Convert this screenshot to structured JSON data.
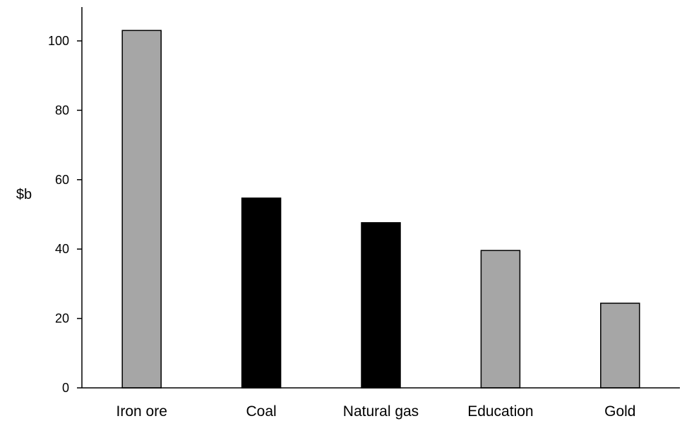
{
  "chart_data": {
    "type": "bar",
    "title": "",
    "xlabel": "",
    "ylabel": "$b",
    "categories": [
      "Iron ore",
      "Coal",
      "Natural gas",
      "Education",
      "Gold"
    ],
    "values": [
      103,
      54.7,
      47.6,
      39.6,
      24.4
    ],
    "bar_colors": [
      "#a6a6a6",
      "#000000",
      "#000000",
      "#a6a6a6",
      "#a6a6a6"
    ],
    "bar_edge_color": "#000000",
    "ylim": [
      0,
      110
    ],
    "yticks": [
      0,
      20,
      40,
      60,
      80,
      100
    ],
    "ytick_labels": [
      "0",
      "20",
      "40",
      "60",
      "80",
      "100"
    ],
    "grid": false,
    "legend": "none"
  }
}
